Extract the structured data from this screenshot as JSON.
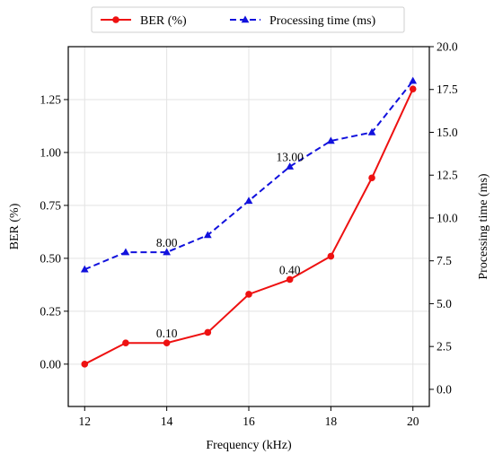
{
  "chart_data": {
    "type": "line",
    "xlabel": "Frequency (kHz)",
    "ylabel_left": "BER (%)",
    "ylabel_right": "Processing time (ms)",
    "x": [
      12,
      13,
      14,
      15,
      16,
      17,
      18,
      19,
      20
    ],
    "x_ticks": [
      "12",
      "14",
      "16",
      "18",
      "20"
    ],
    "y_left_ticks": [
      "0.00",
      "0.25",
      "0.50",
      "0.75",
      "1.00",
      "1.25"
    ],
    "y_right_ticks": [
      "0.0",
      "2.5",
      "5.0",
      "7.5",
      "10.0",
      "12.5",
      "15.0",
      "17.5",
      "20.0"
    ],
    "xlim": [
      11.6,
      20.4
    ],
    "ylim_left": [
      -0.2,
      1.5
    ],
    "ylim_right": [
      -1.0,
      20.0
    ],
    "grid": true,
    "legend_placement": "top-center-outside",
    "series": [
      {
        "name": "BER (%)",
        "axis": "left",
        "color": "#ee1111",
        "style": "solid",
        "marker": "circle",
        "values": [
          0.0,
          0.1,
          0.1,
          0.15,
          0.33,
          0.4,
          0.51,
          0.88,
          1.3
        ]
      },
      {
        "name": "Processing time (ms)",
        "axis": "right",
        "color": "#1111dd",
        "style": "dashed",
        "marker": "triangle",
        "values": [
          7.0,
          8.0,
          8.0,
          9.0,
          11.0,
          13.0,
          14.5,
          15.0,
          18.0
        ]
      }
    ],
    "annotations": [
      {
        "text": "0.10",
        "x": 14,
        "y": 0.1,
        "axis": "left"
      },
      {
        "text": "0.40",
        "x": 17,
        "y": 0.4,
        "axis": "left"
      },
      {
        "text": "8.00",
        "x": 14,
        "y": 8.0,
        "axis": "right"
      },
      {
        "text": "13.00",
        "x": 17,
        "y": 13.0,
        "axis": "right"
      }
    ]
  }
}
